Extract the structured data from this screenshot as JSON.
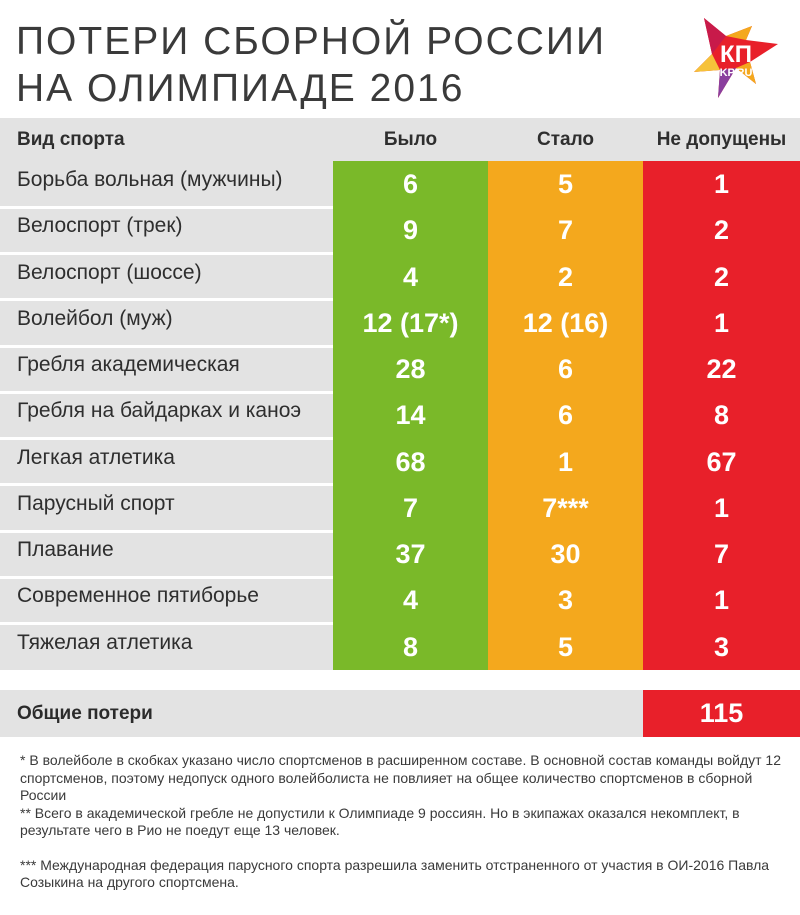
{
  "title": {
    "line1": "ПОТЕРИ СБОРНОЙ РОССИИ",
    "line2": "НА ОЛИМПИАДЕ 2016"
  },
  "logo": {
    "top": "КП",
    "bottom": "KP.RU",
    "colors": [
      "#e8202a",
      "#f4a81d",
      "#8a3f9e"
    ]
  },
  "colors": {
    "was": "#7ab929",
    "now": "#f4a81d",
    "banned": "#e8202a",
    "grey": "#e3e3e3"
  },
  "table": {
    "headers": {
      "sport": "Вид спорта",
      "was": "Было",
      "now": "Стало",
      "banned": "Не допущены"
    },
    "rows": [
      {
        "sport": "Борьба вольная (мужчины)",
        "was": "6",
        "now": "5",
        "banned": "1"
      },
      {
        "sport": "Велоспорт (трек)",
        "was": "9",
        "now": "7",
        "banned": "2"
      },
      {
        "sport": "Велоспорт (шоссе)",
        "was": "4",
        "now": "2",
        "banned": "2"
      },
      {
        "sport": "Волейбол (муж)",
        "was": "12 (17*)",
        "now": "12 (16)",
        "banned": "1"
      },
      {
        "sport": "Гребля академическая",
        "was": "28",
        "now": "6",
        "banned": "22"
      },
      {
        "sport": "Гребля на байдарках и каноэ",
        "was": "14",
        "now": "6",
        "banned": "8"
      },
      {
        "sport": "Легкая атлетика",
        "was": "68",
        "now": "1",
        "banned": "67"
      },
      {
        "sport": "Парусный спорт",
        "was": "7",
        "now": "7***",
        "banned": "1"
      },
      {
        "sport": "Плавание",
        "was": "37",
        "now": "30",
        "banned": "7"
      },
      {
        "sport": "Современное пятиборье",
        "was": "4",
        "now": "3",
        "banned": "1"
      },
      {
        "sport": "Тяжелая атлетика",
        "was": "8",
        "now": "5",
        "banned": "3"
      }
    ],
    "total": {
      "label": "Общие потери",
      "value": "115"
    }
  },
  "notes": {
    "n1": "* В волейболе в скобках указано число спортсменов в расширенном составе. В основной состав команды войдут 12 спортсменов, поэтому недопуск одного волейболиста не повлияет на общее количество спортсменов в сборной России",
    "n2": "** Всего в академической гребле не допустили к Олимпиаде 9 россиян. Но в экипажах оказался некомплект, в результате чего в Рио не поедут еще 13 человек.",
    "n3": "*** Международная федерация парусного спорта разрешила заменить отстраненного от участия в ОИ-2016 Павла Созыкина на другого спортсмена."
  }
}
